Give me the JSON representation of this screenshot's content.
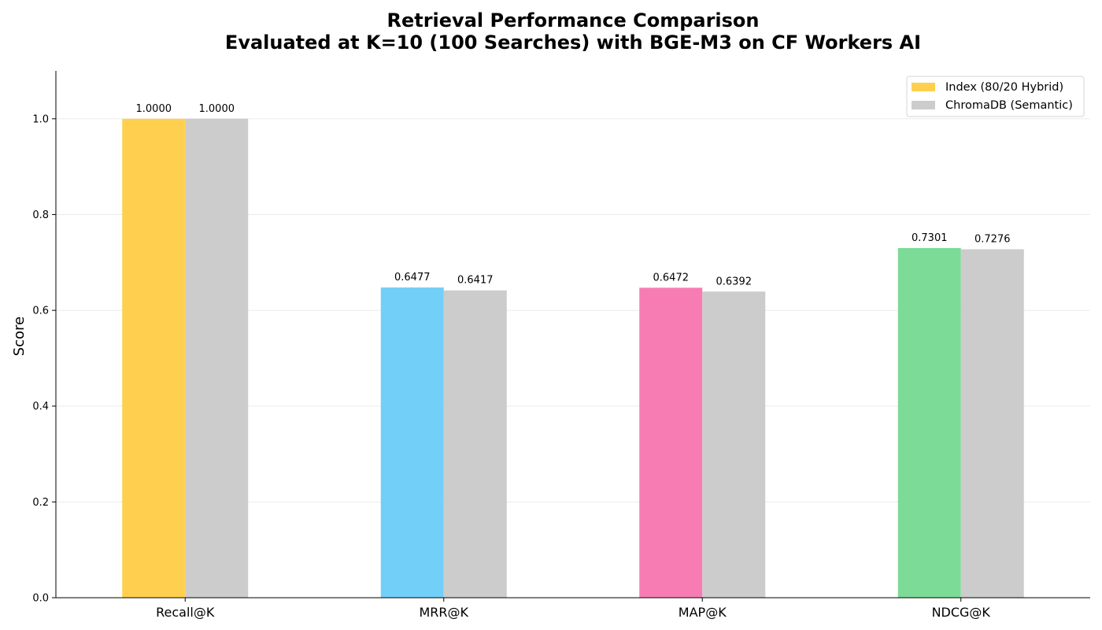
{
  "chart_data": {
    "type": "bar",
    "title": "Retrieval Performance Comparison",
    "subtitle": "Evaluated at K=10 (100 Searches) with BGE-M3 on CF Workers AI",
    "xlabel": "",
    "ylabel": "Score",
    "categories": [
      "Recall@K",
      "MRR@K",
      "MAP@K",
      "NDCG@K"
    ],
    "ylim": [
      0,
      1.1
    ],
    "yticks": [
      "0.0",
      "0.2",
      "0.4",
      "0.6",
      "0.8",
      "1.0"
    ],
    "grid": true,
    "legend_position": "top-right",
    "series": [
      {
        "name": "Index (80/20 Hybrid)",
        "values": [
          1.0,
          0.6477,
          0.6472,
          0.7301
        ],
        "labels": [
          "1.0000",
          "0.6477",
          "0.6472",
          "0.7301"
        ],
        "colors": [
          "#ffd04f",
          "#72cff8",
          "#f77cb4",
          "#7cdb97"
        ],
        "legend_color": "#ffd04f"
      },
      {
        "name": "ChromaDB (Semantic)",
        "values": [
          1.0,
          0.6417,
          0.6392,
          0.7276
        ],
        "labels": [
          "1.0000",
          "0.6417",
          "0.6392",
          "0.7276"
        ],
        "colors": [
          "#cccccc",
          "#cccccc",
          "#cccccc",
          "#cccccc"
        ],
        "legend_color": "#cccccc"
      }
    ]
  }
}
